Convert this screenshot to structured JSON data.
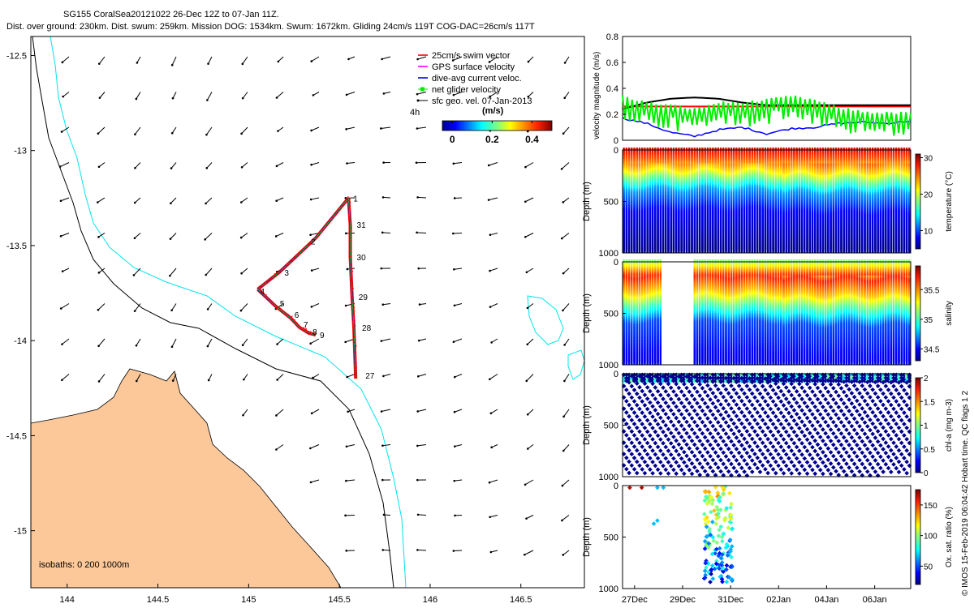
{
  "header": {
    "title": "SG155 CoralSea20121022 26-Dec 12Z to 07-Jan 11Z.",
    "subtitle": "Dist. over ground: 230km. Dist. swum: 259km. Mission DOG: 1534km. Swum: 1672km. Gliding 24cm/s 119T COG-DAC=26cm/s 117T"
  },
  "side_caption": "© IMOS 15-Feb-2019 06:04:42 Hobart time. QC flags 1  2",
  "colors": {
    "land": "#fcc899",
    "coast": "#000000",
    "isobath200": "#000000",
    "isobath1000": "#00e5ee",
    "track_red": "#ff0000",
    "track_blue": "#0000ff",
    "track_green": "#00ee00",
    "wind_black": "#000000"
  },
  "map": {
    "xlim": [
      143.8,
      146.85
    ],
    "ylim": [
      -15.3,
      -12.4
    ],
    "x_ticks": [
      144,
      144.5,
      145,
      145.5,
      146,
      146.5
    ],
    "x_tick_labels": [
      "144",
      "144.5",
      "145",
      "145.5",
      "146",
      "146.5"
    ],
    "y_ticks": [
      -12.5,
      -13,
      -13.5,
      -14,
      -14.5,
      -15
    ],
    "y_tick_labels": [
      "-12.5",
      "-13",
      "-13.5",
      "-14",
      "-14.5",
      "-15"
    ],
    "isobath_label": "isobaths: 0   200  1000m",
    "track_time_label": "4h",
    "legend": [
      {
        "label": "25cm/s swim vector",
        "color": "#ff0000",
        "style": "line"
      },
      {
        "label": "GPS surface velocity",
        "color": "#ff00ff",
        "style": "line"
      },
      {
        "label": "dive-avg current veloc.",
        "color": "#0000ff",
        "style": "line"
      },
      {
        "label": "net glider velocity",
        "color": "#00ee00",
        "style": "marker"
      },
      {
        "label": "sfc geo. vel. 07-Jan-2013",
        "color": "#000000",
        "style": "arrow"
      }
    ],
    "colorbar": {
      "unit": "(m/s)",
      "ticks": [
        0,
        0.2,
        0.4
      ],
      "tick_labels": [
        "0",
        "0.2",
        "0.4"
      ],
      "range": [
        -0.05,
        0.5
      ]
    },
    "track": [
      {
        "label": "1",
        "lon": 145.55,
        "lat": -13.25
      },
      {
        "label": "2",
        "lon": 145.37,
        "lat": -13.46
      },
      {
        "label": "3",
        "lon": 145.17,
        "lat": -13.64
      },
      {
        "label": "4",
        "lon": 145.05,
        "lat": -13.73
      },
      {
        "label": "5",
        "lon": 145.15,
        "lat": -13.82
      },
      {
        "label": "6",
        "lon": 145.23,
        "lat": -13.88
      },
      {
        "label": "7",
        "lon": 145.28,
        "lat": -13.93
      },
      {
        "label": "8",
        "lon": 145.33,
        "lat": -13.96
      },
      {
        "label": "9",
        "lon": 145.37,
        "lat": -13.97
      },
      {
        "label": "31",
        "lon": 145.56,
        "lat": -13.39
      },
      {
        "label": "30",
        "lon": 145.56,
        "lat": -13.56
      },
      {
        "label": "29",
        "lon": 145.57,
        "lat": -13.77
      },
      {
        "label": "28",
        "lon": 145.58,
        "lat": -13.93
      },
      {
        "label": "27",
        "lon": 145.59,
        "lat": -14.2
      }
    ]
  },
  "chart_data": [
    {
      "type": "line",
      "name": "velocity magnitude",
      "ylabel": "velocity magnitude (m/s)",
      "ylim": [
        0,
        0.8
      ],
      "y_ticks": [
        0,
        0.2,
        0.4,
        0.6,
        0.8
      ],
      "y_tick_labels": [
        "0",
        "0.2",
        "0.4",
        "0.6",
        "0.8"
      ],
      "x_range_days": [
        0,
        12
      ],
      "series": [
        {
          "name": "swim speed",
          "color": "#ff0000",
          "values": [
            0.26,
            0.26,
            0.26,
            0.26,
            0.26,
            0.26,
            0.26,
            0.26,
            0.26,
            0.26,
            0.26,
            0.26,
            0.26
          ]
        },
        {
          "name": "sfc geo vel",
          "color": "#000000",
          "values": [
            0.24,
            0.29,
            0.32,
            0.33,
            0.32,
            0.29,
            0.27,
            0.27,
            0.27,
            0.27,
            0.27,
            0.27,
            0.27
          ]
        },
        {
          "name": "dive-avg current",
          "color": "#0000ff",
          "values": [
            0.17,
            0.13,
            0.06,
            0.03,
            0.08,
            0.1,
            0.05,
            0.09,
            0.1,
            0.13,
            0.14,
            0.13,
            0.15
          ]
        },
        {
          "name": "net glider velocity",
          "color": "#00ee00",
          "values": [
            0.25,
            0.2,
            0.18,
            0.15,
            0.2,
            0.2,
            0.22,
            0.25,
            0.22,
            0.16,
            0.13,
            0.12,
            0.12
          ]
        }
      ]
    },
    {
      "type": "heatmap",
      "name": "temperature",
      "ylabel": "Depth (m)",
      "cbar_label": "temperature (°C)",
      "ylim": [
        1000,
        0
      ],
      "y_ticks": [
        0,
        500,
        1000
      ],
      "y_tick_labels": [
        "0",
        "500",
        "1000"
      ],
      "clim": [
        5,
        31
      ],
      "c_ticks": [
        10,
        20,
        30
      ],
      "c_tick_labels": [
        "10",
        "20",
        "30"
      ],
      "profile": [
        {
          "depth": 0,
          "value": 29
        },
        {
          "depth": 100,
          "value": 26
        },
        {
          "depth": 200,
          "value": 22
        },
        {
          "depth": 300,
          "value": 17
        },
        {
          "depth": 400,
          "value": 12
        },
        {
          "depth": 600,
          "value": 8
        },
        {
          "depth": 1000,
          "value": 5
        }
      ]
    },
    {
      "type": "heatmap",
      "name": "salinity",
      "ylabel": "Depth (m)",
      "cbar_label": "salinity",
      "ylim": [
        1000,
        0
      ],
      "y_ticks": [
        0,
        500,
        1000
      ],
      "y_tick_labels": [
        "0",
        "500",
        "1000"
      ],
      "clim": [
        34.3,
        35.9
      ],
      "c_ticks": [
        34.5,
        35,
        35.5
      ],
      "c_tick_labels": [
        "34.5",
        "35",
        "35.5"
      ],
      "gap_days": [
        1.6,
        2.9
      ],
      "profile": [
        {
          "depth": 0,
          "value": 35.1
        },
        {
          "depth": 150,
          "value": 35.7
        },
        {
          "depth": 300,
          "value": 35.4
        },
        {
          "depth": 450,
          "value": 35.0
        },
        {
          "depth": 600,
          "value": 34.6
        },
        {
          "depth": 1000,
          "value": 34.45
        }
      ]
    },
    {
      "type": "scatter",
      "name": "chlorophyll",
      "ylabel": "Depth (m)",
      "cbar_label": "chl-a (mg m-3)",
      "ylim": [
        1000,
        0
      ],
      "y_ticks": [
        0,
        500,
        1000
      ],
      "y_tick_labels": [
        "0",
        "500",
        "1000"
      ],
      "clim": [
        0,
        2
      ],
      "c_ticks": [
        0,
        0.5,
        1,
        1.5,
        2
      ],
      "c_tick_labels": [
        "0",
        "0.5",
        "1",
        "1.5",
        "2"
      ]
    },
    {
      "type": "scatter",
      "name": "oxygen",
      "ylabel": "Depth (m)",
      "cbar_label": "Ox. sat. ratio (%)",
      "ylim": [
        1000,
        0
      ],
      "y_ticks": [
        0,
        500,
        1000
      ],
      "y_tick_labels": [
        "0",
        "500",
        "1000"
      ],
      "clim": [
        20,
        175
      ],
      "c_ticks": [
        50,
        100,
        150
      ],
      "c_tick_labels": [
        "50",
        "100",
        "150"
      ],
      "x_ticks_days": [
        0.5,
        2.5,
        4.5,
        6.5,
        8.5,
        10.5
      ],
      "x_tick_labels": [
        "27Dec",
        "29Dec",
        "31Dec",
        "02Jan",
        "04Jan",
        "06Jan"
      ]
    }
  ]
}
